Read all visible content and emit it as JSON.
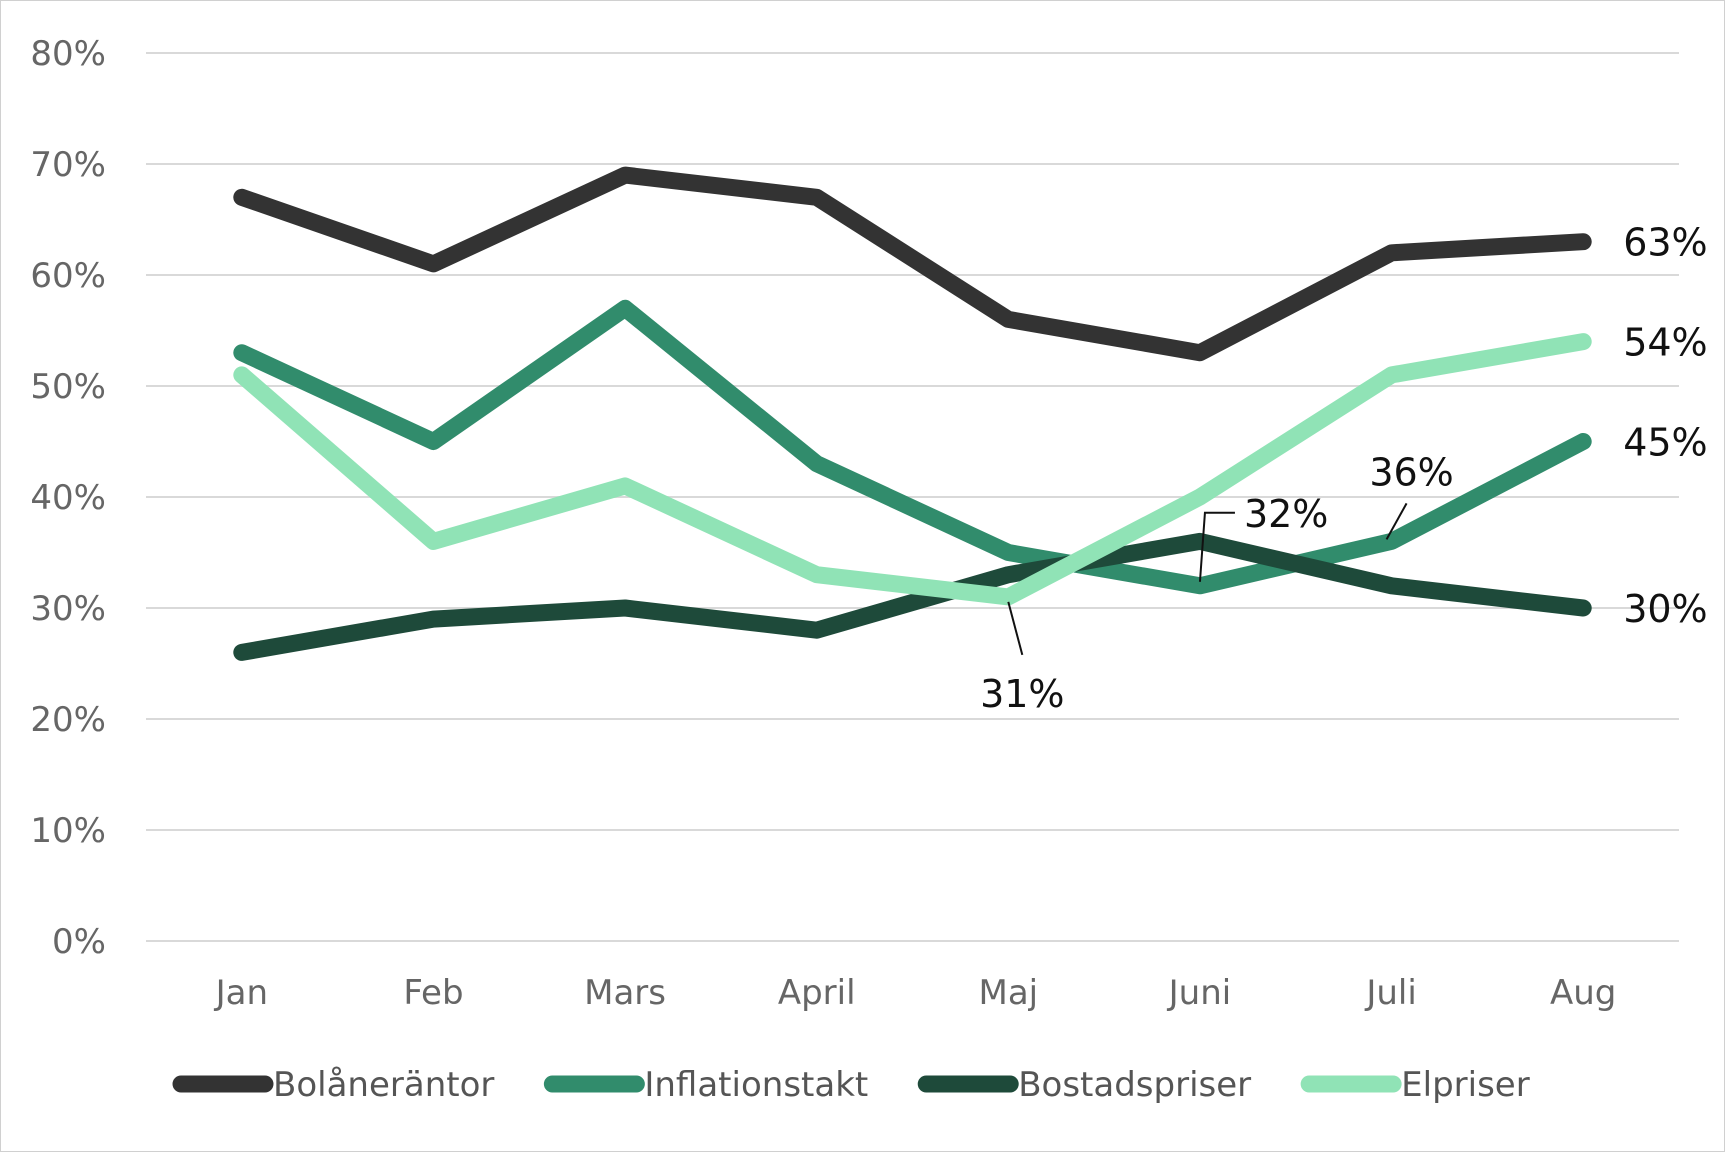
{
  "chart_data": {
    "type": "line",
    "categories": [
      "Jan",
      "Feb",
      "Mars",
      "April",
      "Maj",
      "Juni",
      "Juli",
      "Aug"
    ],
    "ylim": [
      0,
      80
    ],
    "yticks": [
      0,
      10,
      20,
      30,
      40,
      50,
      60,
      70,
      80
    ],
    "ytick_labels": [
      "0%",
      "10%",
      "20%",
      "30%",
      "40%",
      "50%",
      "60%",
      "70%",
      "80%"
    ],
    "grid": true,
    "legend_position": "bottom",
    "series": [
      {
        "name": "Bolåneräntor",
        "color": "#333333",
        "values": [
          67,
          61,
          69,
          67,
          56,
          53,
          62,
          63
        ]
      },
      {
        "name": "Inflationstakt",
        "color": "#318c6c",
        "values": [
          53,
          45,
          57,
          43,
          35,
          32,
          36,
          45
        ]
      },
      {
        "name": "Bostadspriser",
        "color": "#1e4a3a",
        "values": [
          26,
          29,
          30,
          28,
          33,
          36,
          32,
          30
        ]
      },
      {
        "name": "Elpriser",
        "color": "#90e3b6",
        "values": [
          51,
          36,
          41,
          33,
          31,
          40,
          51,
          54
        ]
      }
    ],
    "data_labels": [
      {
        "series": "Bolåneräntor",
        "category": "Aug",
        "text": "63%"
      },
      {
        "series": "Elpriser",
        "category": "Aug",
        "text": "54%"
      },
      {
        "series": "Inflationstakt",
        "category": "Aug",
        "text": "45%"
      },
      {
        "series": "Bostadspriser",
        "category": "Aug",
        "text": "30%"
      },
      {
        "series": "Elpriser",
        "category": "Maj",
        "text": "31%"
      },
      {
        "series": "Inflationstakt",
        "category": "Juni",
        "text": "32%"
      },
      {
        "series": "Inflationstakt",
        "category": "Juli",
        "text": "36%"
      }
    ]
  }
}
